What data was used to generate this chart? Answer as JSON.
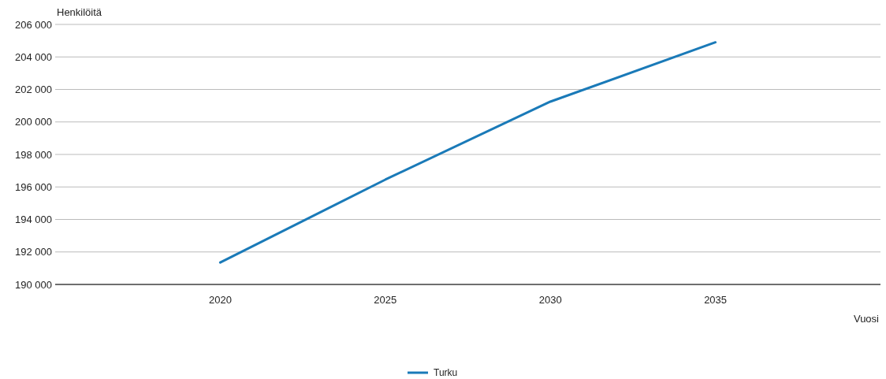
{
  "chart_data": {
    "type": "line",
    "ylabel": "Henkilöitä",
    "xlabel": "Vuosi",
    "x": [
      2020,
      2025,
      2030,
      2035
    ],
    "series": [
      {
        "name": "Turku",
        "color": "#1a7ab8",
        "values": [
          191350,
          196450,
          201250,
          204900
        ]
      }
    ],
    "xlim": [
      2015,
      2040
    ],
    "xticks": [
      2020,
      2025,
      2030,
      2035
    ],
    "ylim": [
      190000,
      206000
    ],
    "yticks": [
      {
        "value": 190000,
        "label": "190 000"
      },
      {
        "value": 192000,
        "label": "192 000"
      },
      {
        "value": 194000,
        "label": "194 000"
      },
      {
        "value": 196000,
        "label": "196 000"
      },
      {
        "value": 198000,
        "label": "198 000"
      },
      {
        "value": 200000,
        "label": "200 000"
      },
      {
        "value": 202000,
        "label": "202 000"
      },
      {
        "value": 204000,
        "label": "204 000"
      },
      {
        "value": 206000,
        "label": "206 000"
      }
    ],
    "grid": "y",
    "legend": "bottom"
  }
}
